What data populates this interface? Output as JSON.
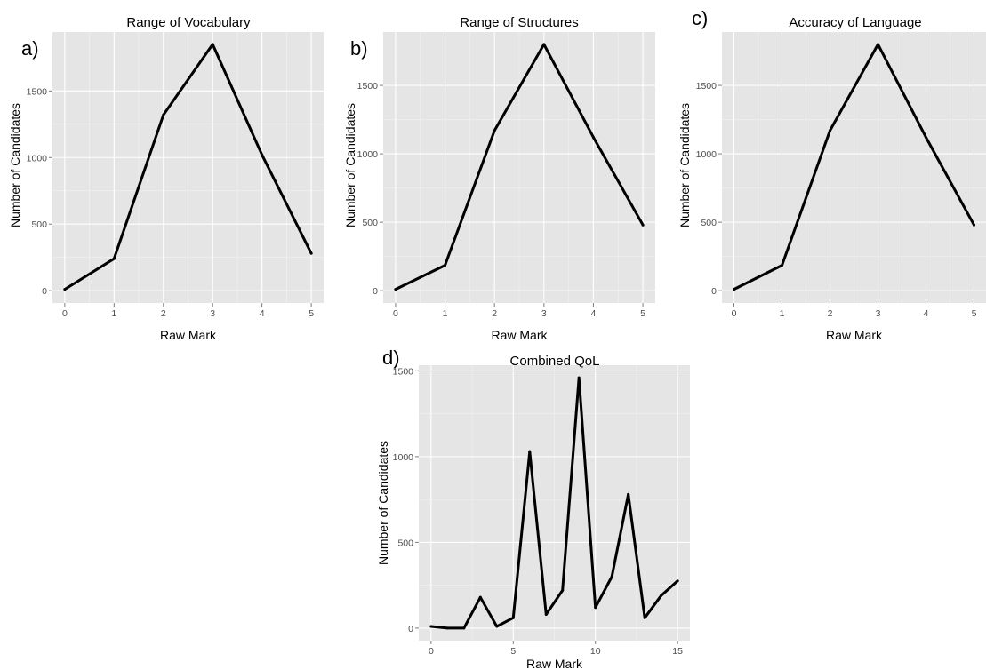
{
  "chart_data": [
    {
      "type": "line",
      "panel_label": "a)",
      "title": "Range of Vocabulary",
      "xlabel": "Raw Mark",
      "ylabel": "Number of Candidates",
      "xlim": [
        0,
        5
      ],
      "ylim": [
        0,
        1850
      ],
      "xticks": [
        0,
        1,
        2,
        3,
        4,
        5
      ],
      "yticks": [
        0,
        500,
        1000,
        1500
      ],
      "grid": true,
      "series": [
        {
          "x": [
            0,
            1,
            2,
            3,
            4,
            5
          ],
          "values": [
            10,
            240,
            1320,
            1850,
            1020,
            280
          ],
          "color": "#000000"
        }
      ]
    },
    {
      "type": "line",
      "panel_label": "b)",
      "title": "Range of Structures",
      "xlabel": "Raw Mark",
      "ylabel": "Number of Candidates",
      "xlim": [
        0,
        5
      ],
      "ylim": [
        0,
        1800
      ],
      "xticks": [
        0,
        1,
        2,
        3,
        4,
        5
      ],
      "yticks": [
        0,
        500,
        1000,
        1500
      ],
      "grid": true,
      "series": [
        {
          "x": [
            0,
            1,
            2,
            3,
            4,
            5
          ],
          "values": [
            10,
            185,
            1170,
            1800,
            1120,
            480
          ],
          "color": "#000000"
        }
      ]
    },
    {
      "type": "line",
      "panel_label": "c)",
      "title": "Accuracy of Language",
      "xlabel": "Raw Mark",
      "ylabel": "Number of Candidates",
      "xlim": [
        0,
        5
      ],
      "ylim": [
        0,
        1800
      ],
      "xticks": [
        0,
        1,
        2,
        3,
        4,
        5
      ],
      "yticks": [
        0,
        500,
        1000,
        1500
      ],
      "grid": true,
      "series": [
        {
          "x": [
            0,
            1,
            2,
            3,
            4,
            5
          ],
          "values": [
            10,
            185,
            1170,
            1800,
            1120,
            480
          ],
          "color": "#000000"
        }
      ]
    },
    {
      "type": "line",
      "panel_label": "d)",
      "title": "Combined QoL",
      "xlabel": "Raw Mark",
      "ylabel": "Number of Candidates",
      "xlim": [
        0,
        15
      ],
      "ylim": [
        0,
        1460
      ],
      "xticks": [
        0,
        5,
        10,
        15
      ],
      "yticks": [
        0,
        500,
        1000,
        1500
      ],
      "grid": true,
      "series": [
        {
          "x": [
            0,
            1,
            2,
            3,
            4,
            5,
            6,
            7,
            8,
            9,
            10,
            11,
            12,
            13,
            14,
            15
          ],
          "values": [
            10,
            0,
            0,
            180,
            10,
            60,
            1030,
            80,
            220,
            1460,
            120,
            300,
            780,
            60,
            190,
            275
          ],
          "color": "#000000"
        }
      ]
    }
  ]
}
